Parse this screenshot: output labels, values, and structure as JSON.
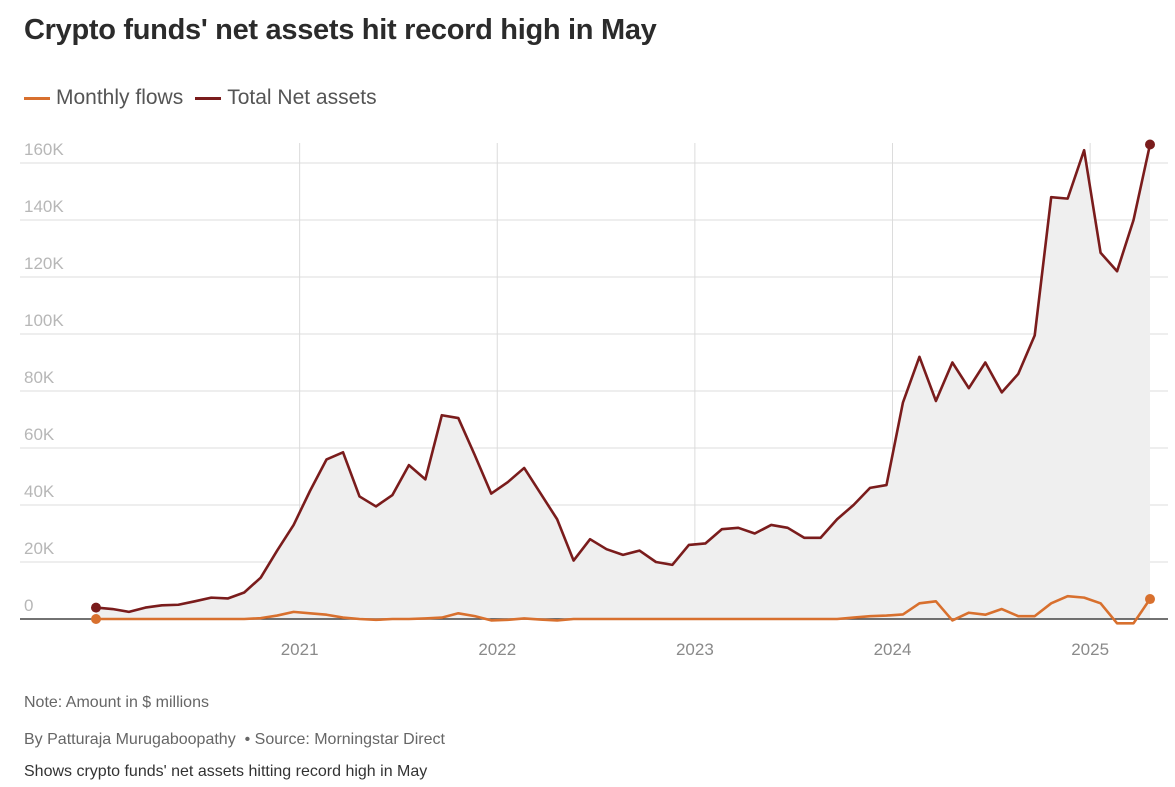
{
  "title": "Crypto funds' net assets hit record high in May",
  "legend": [
    {
      "label": "Monthly flows",
      "color": "#d8702e"
    },
    {
      "label": "Total Net assets",
      "color": "#7a1c1c"
    }
  ],
  "footer": {
    "note": "Note: Amount in $ millions",
    "byline": "By Patturaja Murugaboopathy",
    "source": "Source: Morningstar Direct",
    "caption": "Shows crypto funds' net assets hitting record high in May"
  },
  "chart_data": {
    "type": "line",
    "title": "Crypto funds' net assets hit record high in May",
    "xlabel": "",
    "ylabel": "",
    "ylim": [
      0,
      165000
    ],
    "xlim": [
      "2020-01",
      "2025-05"
    ],
    "grid": true,
    "legend_position": "top-left",
    "y_ticks": [
      {
        "value": 0,
        "label": "0"
      },
      {
        "value": 20000,
        "label": "20K"
      },
      {
        "value": 40000,
        "label": "40K"
      },
      {
        "value": 60000,
        "label": "60K"
      },
      {
        "value": 80000,
        "label": "80K"
      },
      {
        "value": 100000,
        "label": "100K"
      },
      {
        "value": 120000,
        "label": "120K"
      },
      {
        "value": 140000,
        "label": "140K"
      },
      {
        "value": 160000,
        "label": "160K"
      }
    ],
    "x_ticks": [
      {
        "value": "2021-01",
        "label": "2021"
      },
      {
        "value": "2022-01",
        "label": "2022"
      },
      {
        "value": "2023-01",
        "label": "2023"
      },
      {
        "value": "2024-01",
        "label": "2024"
      },
      {
        "value": "2025-01",
        "label": "2025"
      }
    ],
    "x": [
      "2020-01",
      "2020-02",
      "2020-03",
      "2020-04",
      "2020-05",
      "2020-06",
      "2020-07",
      "2020-08",
      "2020-09",
      "2020-10",
      "2020-11",
      "2020-12",
      "2021-01",
      "2021-02",
      "2021-03",
      "2021-04",
      "2021-05",
      "2021-06",
      "2021-07",
      "2021-08",
      "2021-09",
      "2021-10",
      "2021-11",
      "2021-12",
      "2022-01",
      "2022-02",
      "2022-03",
      "2022-04",
      "2022-05",
      "2022-06",
      "2022-07",
      "2022-08",
      "2022-09",
      "2022-10",
      "2022-11",
      "2022-12",
      "2023-01",
      "2023-02",
      "2023-03",
      "2023-04",
      "2023-05",
      "2023-06",
      "2023-07",
      "2023-08",
      "2023-09",
      "2023-10",
      "2023-11",
      "2023-12",
      "2024-01",
      "2024-02",
      "2024-03",
      "2024-04",
      "2024-05",
      "2024-06",
      "2024-07",
      "2024-08",
      "2024-09",
      "2024-10",
      "2024-11",
      "2024-12",
      "2025-01",
      "2025-02",
      "2025-03",
      "2025-04",
      "2025-05"
    ],
    "series": [
      {
        "name": "Total Net assets",
        "color": "#7a1c1c",
        "fill": "#efefef",
        "values": [
          4000,
          3500,
          2500,
          4000,
          4800,
          5000,
          6200,
          7500,
          7200,
          9300,
          14500,
          24000,
          33000,
          45000,
          56000,
          58500,
          43000,
          39500,
          43500,
          54000,
          49000,
          71500,
          70500,
          57500,
          44000,
          48000,
          53000,
          44000,
          35000,
          20500,
          28000,
          24500,
          22500,
          24000,
          20000,
          19000,
          26000,
          26500,
          31500,
          32000,
          30000,
          33000,
          32000,
          28500,
          28500,
          35000,
          40000,
          46000,
          47000,
          76000,
          92000,
          76500,
          90000,
          81000,
          90000,
          79500,
          86000,
          99500,
          148000,
          147500,
          164500,
          128500,
          122000,
          140000,
          166500
        ]
      },
      {
        "name": "Monthly flows",
        "color": "#d8702e",
        "values": [
          0,
          0,
          0,
          0,
          0,
          0,
          0,
          0,
          0,
          0,
          300,
          1200,
          2500,
          2000,
          1500,
          500,
          0,
          -300,
          0,
          0,
          200,
          500,
          2000,
          1000,
          -500,
          -300,
          200,
          -200,
          -500,
          0,
          0,
          0,
          0,
          0,
          0,
          0,
          0,
          0,
          0,
          0,
          0,
          0,
          0,
          0,
          0,
          0,
          500,
          1000,
          1200,
          1600,
          5500,
          6200,
          -500,
          2200,
          1500,
          3500,
          1000,
          1000,
          5500,
          8000,
          7500,
          5500,
          -1500,
          -1500,
          7000
        ]
      }
    ]
  }
}
